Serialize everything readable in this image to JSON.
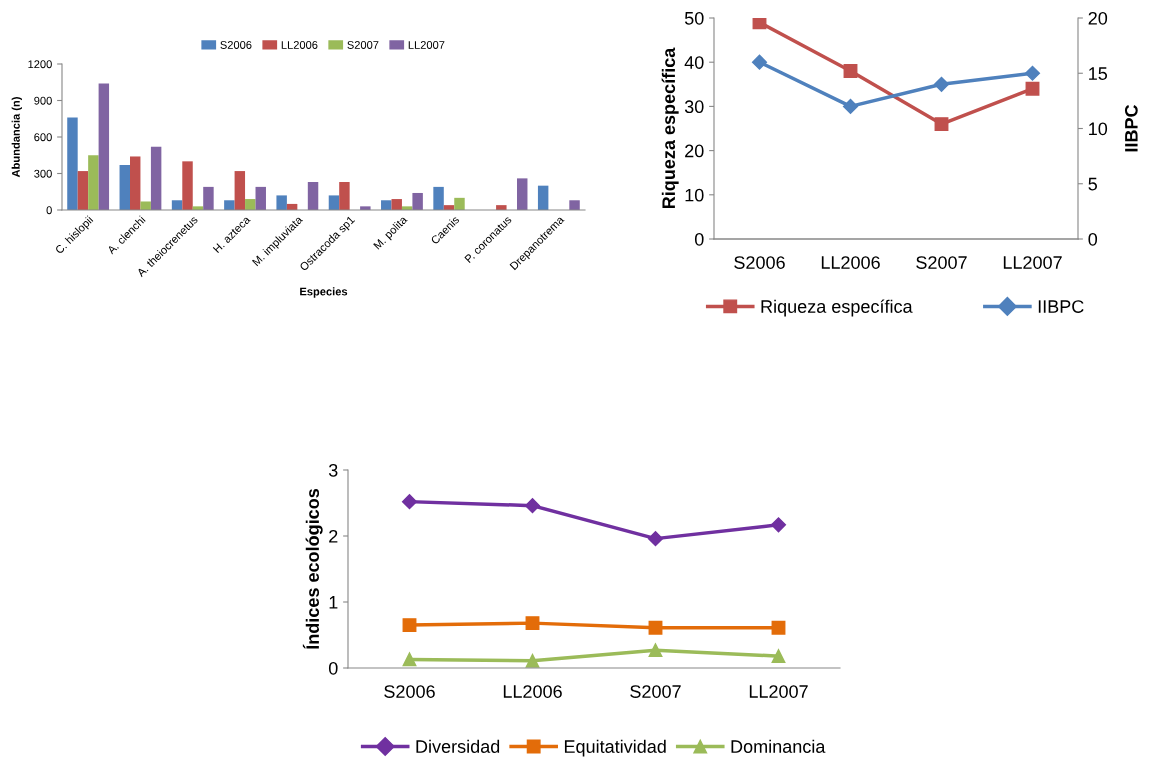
{
  "chart_data": [
    {
      "type": "bar",
      "xlabel": "Especies",
      "ylabel": "Abundancia (n)",
      "categories": [
        "C. hislopii",
        "A. clenchi",
        "A. theiocrenetus",
        "H. azteca",
        "M. impluviata",
        "Ostracoda sp1",
        "M. polita",
        "Caenis",
        "P. coronatus",
        "Drepanotrema"
      ],
      "series": [
        {
          "name": "S2006",
          "color": "#4f81bd",
          "values": [
            760,
            370,
            80,
            80,
            120,
            120,
            80,
            190,
            0,
            200
          ]
        },
        {
          "name": "LL2006",
          "color": "#c0504d",
          "values": [
            320,
            440,
            400,
            320,
            50,
            230,
            90,
            40,
            40,
            0
          ]
        },
        {
          "name": "S2007",
          "color": "#9bbb59",
          "values": [
            450,
            70,
            30,
            90,
            0,
            0,
            30,
            100,
            0,
            0
          ]
        },
        {
          "name": "LL2007",
          "color": "#8064a2",
          "values": [
            1040,
            520,
            190,
            190,
            230,
            30,
            140,
            0,
            260,
            80
          ]
        }
      ],
      "ylim": [
        0,
        1200
      ],
      "yticks": [
        0,
        300,
        600,
        900,
        1200
      ],
      "grid": false,
      "legend": "top"
    },
    {
      "type": "line",
      "ylabel": "Riqueza específica",
      "y2label": "IIBPC",
      "categories": [
        "S2006",
        "LL2006",
        "S2007",
        "LL2007"
      ],
      "series": [
        {
          "name": "Riqueza específica",
          "color": "#c0504d",
          "marker": "square",
          "values": [
            49,
            38,
            26,
            34
          ]
        },
        {
          "name": "IIBPC",
          "color": "#4f81bd",
          "marker": "diamond",
          "axis": "y2",
          "values": [
            16,
            12,
            14,
            15
          ]
        }
      ],
      "ylim": [
        0,
        50
      ],
      "yticks": [
        0,
        10,
        20,
        30,
        40,
        50
      ],
      "y2lim": [
        0,
        20
      ],
      "y2ticks": [
        0,
        5,
        10,
        15,
        20
      ],
      "grid": false,
      "legend": "bottom"
    },
    {
      "type": "line",
      "ylabel": "Índices ecológicos",
      "categories": [
        "S2006",
        "LL2006",
        "S2007",
        "LL2007"
      ],
      "series": [
        {
          "name": "Diversidad",
          "color": "#7030a0",
          "marker": "diamond",
          "values": [
            2.52,
            2.46,
            1.96,
            2.17
          ]
        },
        {
          "name": "Equitatividad",
          "color": "#e36c09",
          "marker": "square",
          "values": [
            0.65,
            0.68,
            0.61,
            0.61
          ]
        },
        {
          "name": "Dominancia",
          "color": "#9bbb59",
          "marker": "triangle",
          "values": [
            0.13,
            0.11,
            0.27,
            0.18
          ]
        }
      ],
      "ylim": [
        0,
        3
      ],
      "yticks": [
        0,
        1,
        2,
        3
      ],
      "grid": false,
      "legend": "bottom"
    }
  ]
}
